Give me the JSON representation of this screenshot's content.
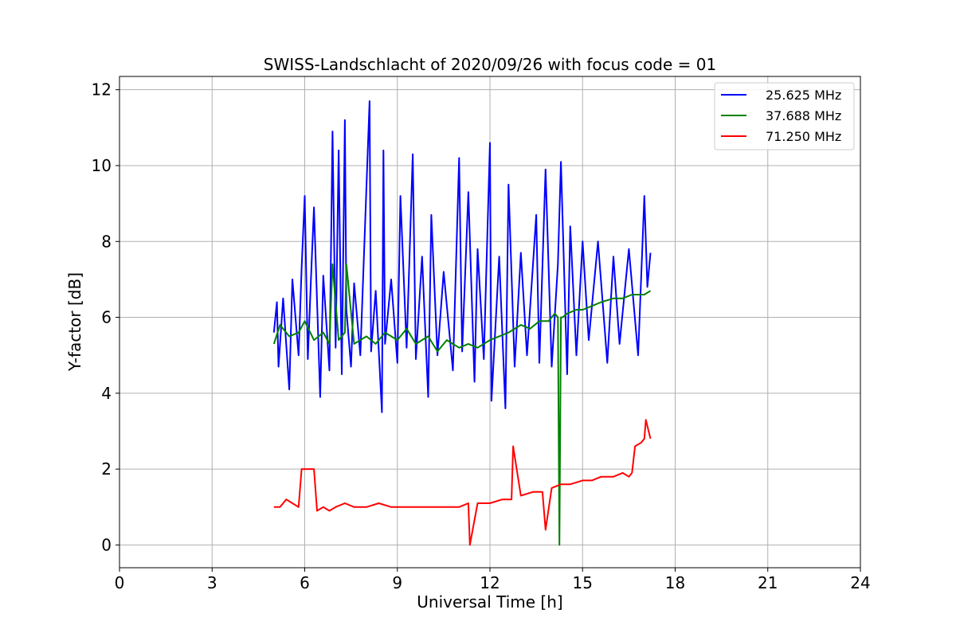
{
  "chart_data": {
    "type": "line",
    "title": "SWISS-Landschlacht of 2020/09/26 with focus code = 01",
    "xlabel": "Universal Time [h]",
    "ylabel": "Y-factor [dB]",
    "xlim": [
      0,
      24
    ],
    "ylim": [
      -0.6,
      12.35
    ],
    "xticks": [
      0,
      3,
      6,
      9,
      12,
      15,
      18,
      21,
      24
    ],
    "yticks": [
      0,
      2,
      4,
      6,
      8,
      10,
      12
    ],
    "grid": true,
    "legend_position": "top-right",
    "series": [
      {
        "name": "25.625 MHz",
        "color": "#0000ff",
        "x": [
          5.0,
          5.1,
          5.15,
          5.3,
          5.5,
          5.6,
          5.8,
          5.9,
          6.0,
          6.1,
          6.2,
          6.3,
          6.5,
          6.6,
          6.8,
          6.9,
          7.0,
          7.1,
          7.2,
          7.3,
          7.35,
          7.5,
          7.6,
          7.8,
          7.9,
          8.1,
          8.15,
          8.3,
          8.5,
          8.55,
          8.6,
          8.8,
          9.0,
          9.1,
          9.3,
          9.5,
          9.6,
          9.8,
          10.0,
          10.1,
          10.3,
          10.5,
          10.8,
          11.0,
          11.1,
          11.3,
          11.5,
          11.6,
          11.8,
          12.0,
          12.05,
          12.3,
          12.5,
          12.6,
          12.8,
          13.0,
          13.2,
          13.5,
          13.6,
          13.8,
          14.0,
          14.2,
          14.3,
          14.5,
          14.6,
          14.8,
          15.0,
          15.2,
          15.5,
          15.8,
          16.0,
          16.2,
          16.5,
          16.8,
          17.0,
          17.1,
          17.2
        ],
        "values": [
          5.6,
          6.4,
          4.7,
          6.5,
          4.1,
          7.0,
          5.0,
          7.3,
          9.2,
          4.9,
          7.0,
          8.9,
          3.9,
          7.1,
          4.6,
          10.9,
          5.2,
          10.4,
          4.5,
          11.2,
          6.2,
          4.7,
          6.9,
          5.0,
          7.2,
          11.7,
          5.1,
          6.7,
          3.5,
          10.4,
          5.3,
          7.0,
          4.8,
          9.2,
          5.2,
          10.3,
          4.9,
          7.6,
          3.9,
          8.7,
          5.0,
          7.2,
          4.6,
          10.2,
          5.1,
          9.3,
          4.3,
          7.8,
          4.9,
          10.6,
          3.8,
          7.6,
          3.6,
          9.5,
          4.7,
          7.7,
          5.0,
          8.7,
          4.8,
          9.9,
          4.7,
          7.4,
          10.1,
          4.5,
          8.4,
          5.0,
          8.0,
          5.4,
          8.0,
          4.8,
          7.6,
          5.3,
          7.8,
          5.0,
          9.2,
          6.8,
          7.7
        ]
      },
      {
        "name": "37.688 MHz",
        "color": "#008000",
        "x": [
          5.0,
          5.2,
          5.5,
          5.8,
          6.0,
          6.3,
          6.6,
          6.8,
          6.9,
          7.1,
          7.3,
          7.35,
          7.6,
          8.0,
          8.3,
          8.6,
          9.0,
          9.3,
          9.6,
          10.0,
          10.3,
          10.6,
          11.0,
          11.3,
          11.6,
          12.0,
          12.3,
          12.6,
          13.0,
          13.3,
          13.6,
          13.9,
          14.1,
          14.2,
          14.25,
          14.3,
          14.35,
          14.5,
          14.8,
          15.0,
          15.3,
          15.6,
          16.0,
          16.3,
          16.6,
          17.0,
          17.2
        ],
        "values": [
          5.3,
          5.8,
          5.5,
          5.6,
          5.9,
          5.4,
          5.6,
          5.3,
          7.4,
          5.4,
          5.6,
          7.4,
          5.3,
          5.5,
          5.3,
          5.6,
          5.4,
          5.7,
          5.3,
          5.5,
          5.1,
          5.4,
          5.2,
          5.3,
          5.2,
          5.4,
          5.5,
          5.6,
          5.8,
          5.7,
          5.9,
          5.9,
          6.1,
          6.0,
          0.0,
          6.0,
          6.0,
          6.1,
          6.2,
          6.2,
          6.3,
          6.4,
          6.5,
          6.5,
          6.6,
          6.6,
          6.7
        ]
      },
      {
        "name": "71.250 MHz",
        "color": "#ff0000",
        "x": [
          5.0,
          5.2,
          5.4,
          5.6,
          5.8,
          5.9,
          6.0,
          6.2,
          6.3,
          6.4,
          6.6,
          6.8,
          7.0,
          7.3,
          7.6,
          8.0,
          8.4,
          8.8,
          9.0,
          9.4,
          9.8,
          10.2,
          10.6,
          11.0,
          11.3,
          11.35,
          11.6,
          12.0,
          12.4,
          12.7,
          12.75,
          13.0,
          13.4,
          13.7,
          13.8,
          14.0,
          14.3,
          14.6,
          15.0,
          15.3,
          15.6,
          16.0,
          16.3,
          16.5,
          16.6,
          16.7,
          16.9,
          17.0,
          17.05,
          17.2
        ],
        "values": [
          1.0,
          1.0,
          1.2,
          1.1,
          1.0,
          2.0,
          2.0,
          2.0,
          2.0,
          0.9,
          1.0,
          0.9,
          1.0,
          1.1,
          1.0,
          1.0,
          1.1,
          1.0,
          1.0,
          1.0,
          1.0,
          1.0,
          1.0,
          1.0,
          1.1,
          0.0,
          1.1,
          1.1,
          1.2,
          1.2,
          2.6,
          1.3,
          1.4,
          1.4,
          0.4,
          1.5,
          1.6,
          1.6,
          1.7,
          1.7,
          1.8,
          1.8,
          1.9,
          1.8,
          1.9,
          2.6,
          2.7,
          2.8,
          3.3,
          2.8
        ]
      }
    ]
  }
}
